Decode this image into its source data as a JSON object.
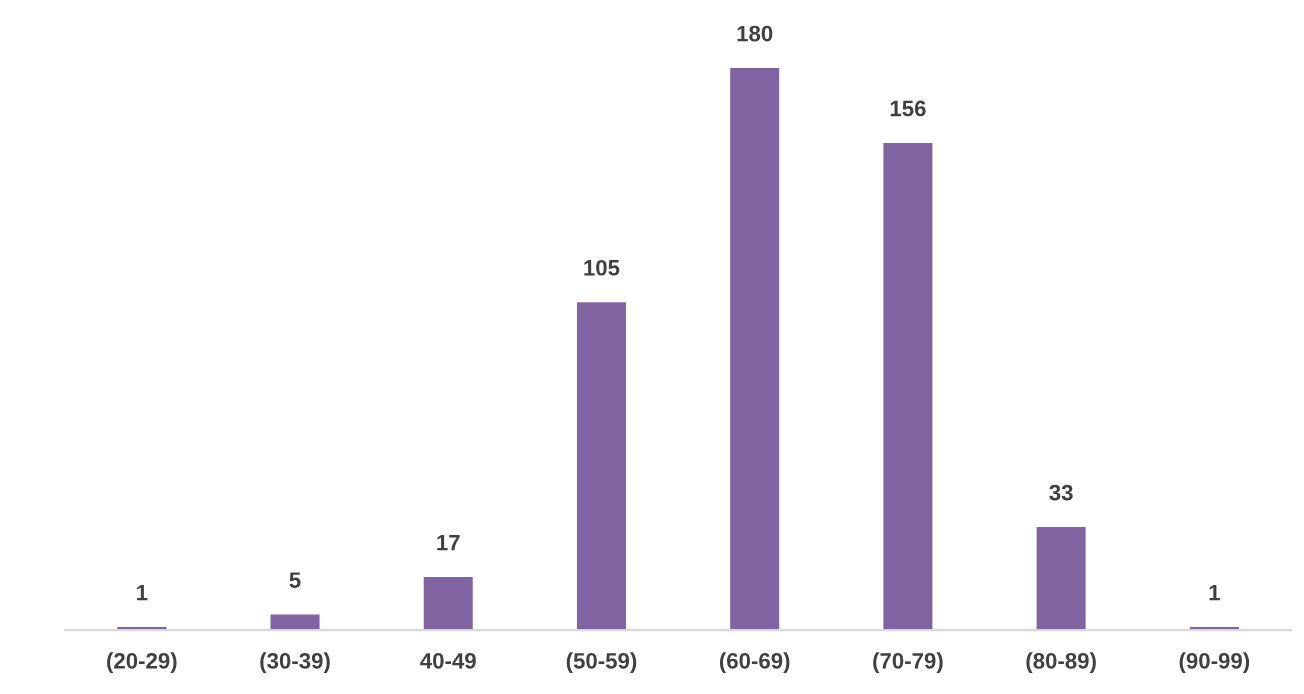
{
  "chart_data": {
    "type": "bar",
    "categories": [
      "(20-29)",
      "(30-39)",
      "40-49",
      "(50-59)",
      "(60-69)",
      "(70-79)",
      "(80-89)",
      "(90-99)"
    ],
    "values": [
      1,
      5,
      17,
      105,
      180,
      156,
      33,
      1
    ],
    "color": "#8064a2",
    "data_labels": true,
    "grid": false,
    "legend": false,
    "tick_labels": "x"
  }
}
